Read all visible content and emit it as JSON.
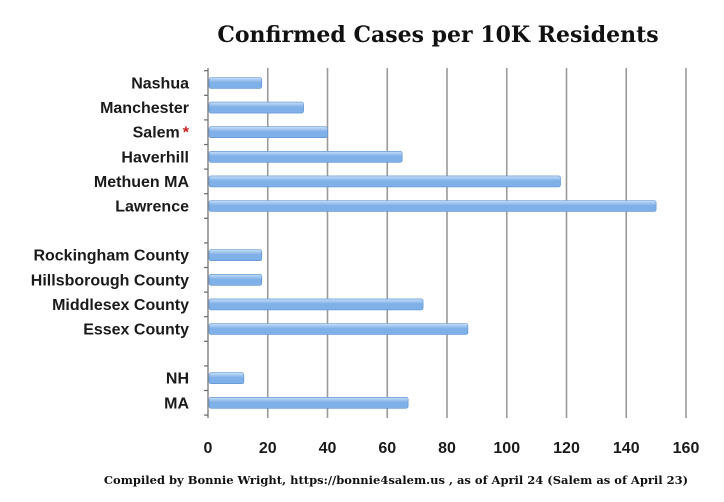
{
  "chart_data": {
    "type": "bar",
    "orientation": "horizontal",
    "title": "Confirmed Cases per 10K Residents",
    "categories": [
      "Nashua",
      "Manchester",
      "Salem",
      "Haverhill",
      "Methuen MA",
      "Lawrence",
      "",
      "Rockingham County",
      "Hillsborough County",
      "Middlesex County",
      "Essex County",
      "",
      "NH",
      "MA"
    ],
    "values": [
      18,
      32,
      40,
      65,
      118,
      150,
      null,
      18,
      18,
      72,
      87,
      null,
      12,
      67
    ],
    "annotations": [
      {
        "category": "Salem",
        "marker": "*"
      }
    ],
    "xlim": [
      0,
      160
    ],
    "xticks": [
      "0",
      "20",
      "40",
      "60",
      "80",
      "100",
      "120",
      "140",
      "160"
    ],
    "grid": "vertical",
    "footer": "Compiled by Bonnie Wright, https://bonnie4salem.us , as of April 24  (Salem as of April 23)",
    "colors": {
      "bar": "#7fb0e8",
      "bar_light": "#c9e0f8",
      "grid": "#9a9a9a",
      "star": "#cc1f1f"
    }
  }
}
